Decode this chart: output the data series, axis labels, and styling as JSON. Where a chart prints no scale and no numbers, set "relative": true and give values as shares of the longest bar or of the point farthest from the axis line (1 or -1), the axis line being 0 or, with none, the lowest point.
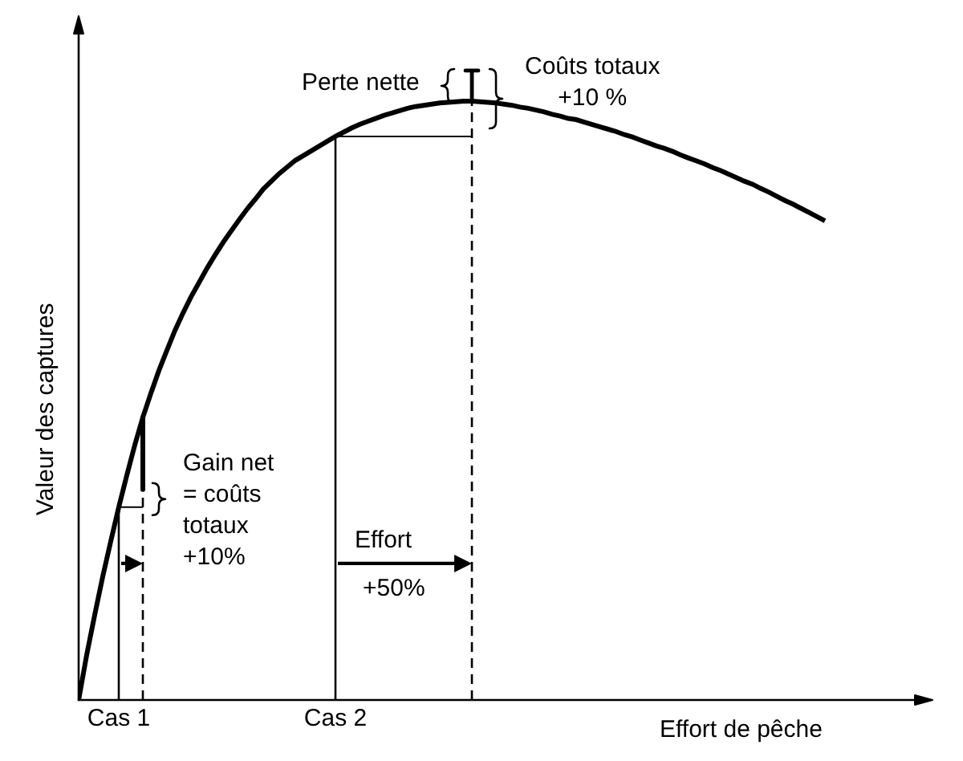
{
  "chart_data": {
    "type": "line",
    "relative": true,
    "xlabel": "Effort de pêche",
    "ylabel": "Valeur des captures",
    "categories": [
      null,
      null,
      null,
      null,
      null,
      "Cas 1",
      null,
      null,
      null,
      null,
      null,
      null,
      null,
      null,
      null,
      null,
      null,
      null,
      null,
      null,
      null,
      null,
      null,
      null,
      null,
      null,
      null,
      null,
      null,
      null,
      null,
      null,
      "Cas 2",
      null,
      null,
      null,
      null,
      null,
      null,
      null,
      null,
      null,
      null,
      null,
      null,
      null,
      null,
      null,
      null,
      null,
      null,
      null,
      null,
      null,
      null,
      null,
      null,
      null,
      null,
      null,
      null,
      null,
      null,
      null,
      null,
      null,
      null,
      null,
      null,
      null,
      null,
      null,
      null,
      null,
      null,
      null,
      null,
      null,
      null,
      null,
      null,
      null,
      null,
      null,
      null,
      null,
      null,
      null,
      null,
      null,
      null,
      null,
      null,
      null
    ],
    "series": [
      {
        "color": "#000000",
        "values": [
          0,
          0.075,
          0.142,
          0.206,
          0.265,
          0.322,
          0.375,
          0.426,
          0.472,
          0.512,
          0.55,
          0.584,
          0.617,
          0.646,
          0.673,
          0.697,
          0.721,
          0.743,
          0.764,
          0.783,
          0.802,
          0.82,
          0.836,
          0.853,
          0.866,
          0.879,
          0.89,
          0.901,
          0.909,
          0.917,
          0.925,
          0.933,
          0.941,
          0.948,
          0.955,
          0.961,
          0.966,
          0.971,
          0.976,
          0.98,
          0.984,
          0.988,
          0.991,
          0.993,
          0.995,
          0.997,
          0.998,
          0.999,
          1,
          1,
          0.999,
          0.998,
          0.997,
          0.995,
          0.993,
          0.99,
          0.988,
          0.985,
          0.982,
          0.978,
          0.975,
          0.971,
          0.969,
          0.965,
          0.961,
          0.957,
          0.953,
          0.949,
          0.944,
          0.94,
          0.935,
          0.93,
          0.925,
          0.921,
          0.916,
          0.91,
          0.905,
          0.9,
          0.895,
          0.889,
          0.884,
          0.878,
          0.872,
          0.866,
          0.861,
          0.854,
          0.848,
          0.841,
          0.834,
          0.828,
          0.821,
          0.814,
          0.807,
          0.8
        ]
      },
      {
        "color": "#000000",
        "values": [
          null,
          null,
          null,
          null,
          null,
          0.322,
          0.322,
          0.322,
          0.322,
          null,
          null,
          null,
          null,
          null,
          null,
          null,
          null,
          null,
          null,
          null,
          null,
          null,
          null,
          null,
          null,
          null,
          null,
          null,
          null,
          null,
          null,
          null,
          null,
          null,
          null,
          null,
          null,
          null,
          null,
          null,
          null,
          null,
          null,
          null,
          null,
          null,
          null,
          null,
          null,
          null,
          null,
          null,
          null,
          null,
          null,
          null,
          null,
          null,
          null,
          null,
          null,
          null,
          null,
          null,
          null,
          null,
          null,
          null,
          null,
          null,
          null,
          null,
          null,
          null,
          null,
          null,
          null,
          null,
          null,
          null,
          null,
          null,
          null,
          null,
          null,
          null,
          null,
          null,
          null,
          null,
          null,
          null,
          null,
          null
        ]
      },
      {
        "color": "#000000",
        "values": [
          null,
          null,
          null,
          null,
          null,
          null,
          null,
          null,
          null,
          null,
          null,
          null,
          null,
          null,
          null,
          null,
          null,
          null,
          null,
          null,
          null,
          null,
          null,
          null,
          null,
          null,
          null,
          null,
          null,
          null,
          null,
          null,
          0.941,
          0.941,
          0.941,
          0.941,
          0.941,
          0.941,
          0.941,
          0.941,
          0.941,
          0.941,
          0.941,
          0.941,
          0.941,
          0.941,
          0.941,
          0.941,
          0.941,
          0.941,
          null,
          null,
          null,
          null,
          null,
          null,
          null,
          null,
          null,
          null,
          null,
          null,
          null,
          null,
          null,
          null,
          null,
          null,
          null,
          null,
          null,
          null,
          null,
          null,
          null,
          null,
          null,
          null,
          null,
          null,
          null,
          null,
          null,
          null,
          null,
          null,
          null,
          null,
          null,
          null,
          null,
          null,
          null,
          null
        ]
      }
    ],
    "ref_lines": [
      {
        "axis": "x",
        "value": "Cas 1"
      },
      {
        "axis": "x",
        "value": "Cas 2"
      }
    ],
    "annotations": [
      "Perte nette",
      "Coûts totaux\n+10 %",
      "Gain net\n= coûts\ntotaux\n+10%",
      "Effort",
      "+50%"
    ]
  }
}
